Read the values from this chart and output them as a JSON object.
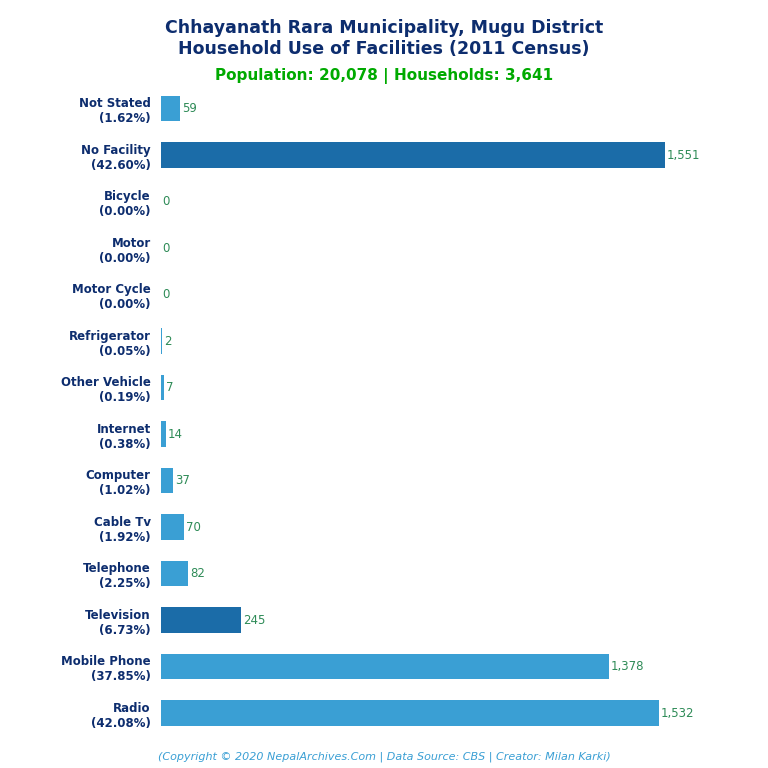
{
  "title_line1": "Chhayanath Rara Municipality, Mugu District",
  "title_line2": "Household Use of Facilities (2011 Census)",
  "subtitle": "Population: 20,078 | Households: 3,641",
  "categories": [
    "Not Stated\n(1.62%)",
    "No Facility\n(42.60%)",
    "Bicycle\n(0.00%)",
    "Motor\n(0.00%)",
    "Motor Cycle\n(0.00%)",
    "Refrigerator\n(0.05%)",
    "Other Vehicle\n(0.19%)",
    "Internet\n(0.38%)",
    "Computer\n(1.02%)",
    "Cable Tv\n(1.92%)",
    "Telephone\n(2.25%)",
    "Television\n(6.73%)",
    "Mobile Phone\n(37.85%)",
    "Radio\n(42.08%)"
  ],
  "values": [
    59,
    1551,
    0,
    0,
    0,
    2,
    7,
    14,
    37,
    70,
    82,
    245,
    1378,
    1532
  ],
  "bar_colors": [
    "#3a9fd4",
    "#1b6ca8",
    "#3a9fd4",
    "#3a9fd4",
    "#3a9fd4",
    "#3a9fd4",
    "#3a9fd4",
    "#3a9fd4",
    "#3a9fd4",
    "#3a9fd4",
    "#3a9fd4",
    "#1b6ca8",
    "#3a9fd4",
    "#3a9fd4"
  ],
  "title_color": "#0d2d6e",
  "subtitle_color": "#00aa00",
  "value_color": "#2e8b57",
  "footer_color": "#3a9fd4",
  "background_color": "#ffffff",
  "footer_text": "(Copyright © 2020 NepalArchives.Com | Data Source: CBS | Creator: Milan Karki)",
  "xlim": 1750,
  "bar_height": 0.55
}
